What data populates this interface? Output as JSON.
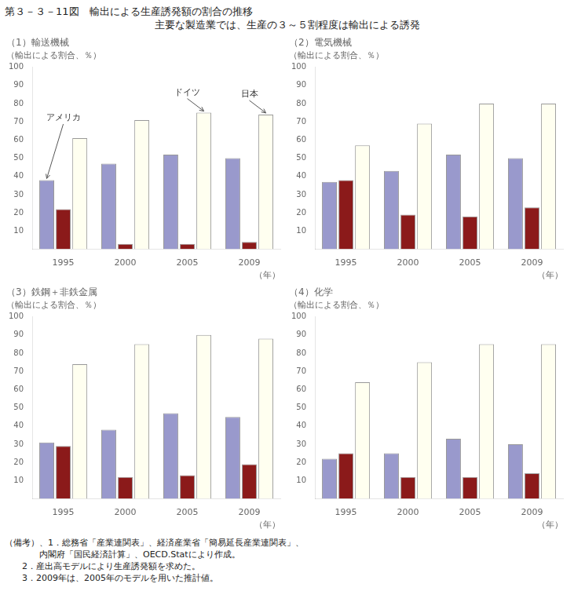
{
  "title": "第３－３－11図　輸出による生産誘発額の割合の推移",
  "subtitle": "主要な製造業では、生産の３～５割程度は輸出による誘発",
  "footnotes": [
    "（備考）、1．総務省「産業連関表」、経済産業省「簡易延長産業連関表」、",
    "　　　　内閣府「国民経済計算」、OECD.Statにより作成。",
    "　　2．産出高モデルにより生産誘発額を求めた。",
    "　　3．2009年は、2005年のモデルを用いた推計値。"
  ],
  "chart_data": [
    {
      "type": "bar",
      "title": "（1）輸送機械",
      "ylabel": "（輸出による割合、％）",
      "xlabel": "（年）",
      "categories": [
        1995,
        2000,
        2005,
        2009
      ],
      "series": [
        {
          "color": "#9999cc",
          "values": [
            38,
            47,
            52,
            50
          ]
        },
        {
          "color": "#8b1a1a",
          "values": [
            22,
            3,
            3,
            4
          ]
        },
        {
          "color": "#fffff0",
          "values": [
            61,
            71,
            75,
            74
          ]
        }
      ],
      "ylim": [
        0,
        100
      ],
      "yticks": [
        10,
        20,
        30,
        40,
        50,
        60,
        70,
        80,
        90,
        100
      ],
      "grid": false,
      "annotations": [
        {
          "text": "アメリカ",
          "x": 1995,
          "y": 38
        },
        {
          "text": "ドイツ",
          "x": 2005,
          "y": 75
        },
        {
          "text": "日本",
          "x": 2009,
          "y": 74
        }
      ]
    },
    {
      "type": "bar",
      "title": "（2）電気機械",
      "ylabel": "（輸出による割合、％）",
      "xlabel": "（年）",
      "categories": [
        1995,
        2000,
        2005,
        2009
      ],
      "series": [
        {
          "color": "#9999cc",
          "values": [
            37,
            43,
            52,
            50
          ]
        },
        {
          "color": "#8b1a1a",
          "values": [
            38,
            19,
            18,
            23
          ]
        },
        {
          "color": "#fffff0",
          "values": [
            57,
            69,
            80,
            80
          ]
        }
      ],
      "ylim": [
        0,
        100
      ],
      "yticks": [
        10,
        20,
        30,
        40,
        50,
        60,
        70,
        80,
        90,
        100
      ],
      "grid": false
    },
    {
      "type": "bar",
      "title": "（3）鉄鋼＋非鉄金属",
      "ylabel": "（輸出による割合、％）",
      "xlabel": "（年）",
      "categories": [
        1995,
        2000,
        2005,
        2009
      ],
      "series": [
        {
          "color": "#9999cc",
          "values": [
            31,
            38,
            47,
            45
          ]
        },
        {
          "color": "#8b1a1a",
          "values": [
            29,
            12,
            13,
            19
          ]
        },
        {
          "color": "#fffff0",
          "values": [
            74,
            85,
            90,
            88
          ]
        }
      ],
      "ylim": [
        0,
        100
      ],
      "yticks": [
        10,
        20,
        30,
        40,
        50,
        60,
        70,
        80,
        90,
        100
      ],
      "grid": false
    },
    {
      "type": "bar",
      "title": "（4）化学",
      "ylabel": "（輸出による割合、％）",
      "xlabel": "（年）",
      "categories": [
        1995,
        2000,
        2005,
        2009
      ],
      "series": [
        {
          "color": "#9999cc",
          "values": [
            22,
            25,
            33,
            30
          ]
        },
        {
          "color": "#8b1a1a",
          "values": [
            25,
            12,
            12,
            14
          ]
        },
        {
          "color": "#fffff0",
          "values": [
            64,
            75,
            85,
            85
          ]
        }
      ],
      "ylim": [
        0,
        100
      ],
      "yticks": [
        10,
        20,
        30,
        40,
        50,
        60,
        70,
        80,
        90,
        100
      ],
      "grid": false
    }
  ]
}
